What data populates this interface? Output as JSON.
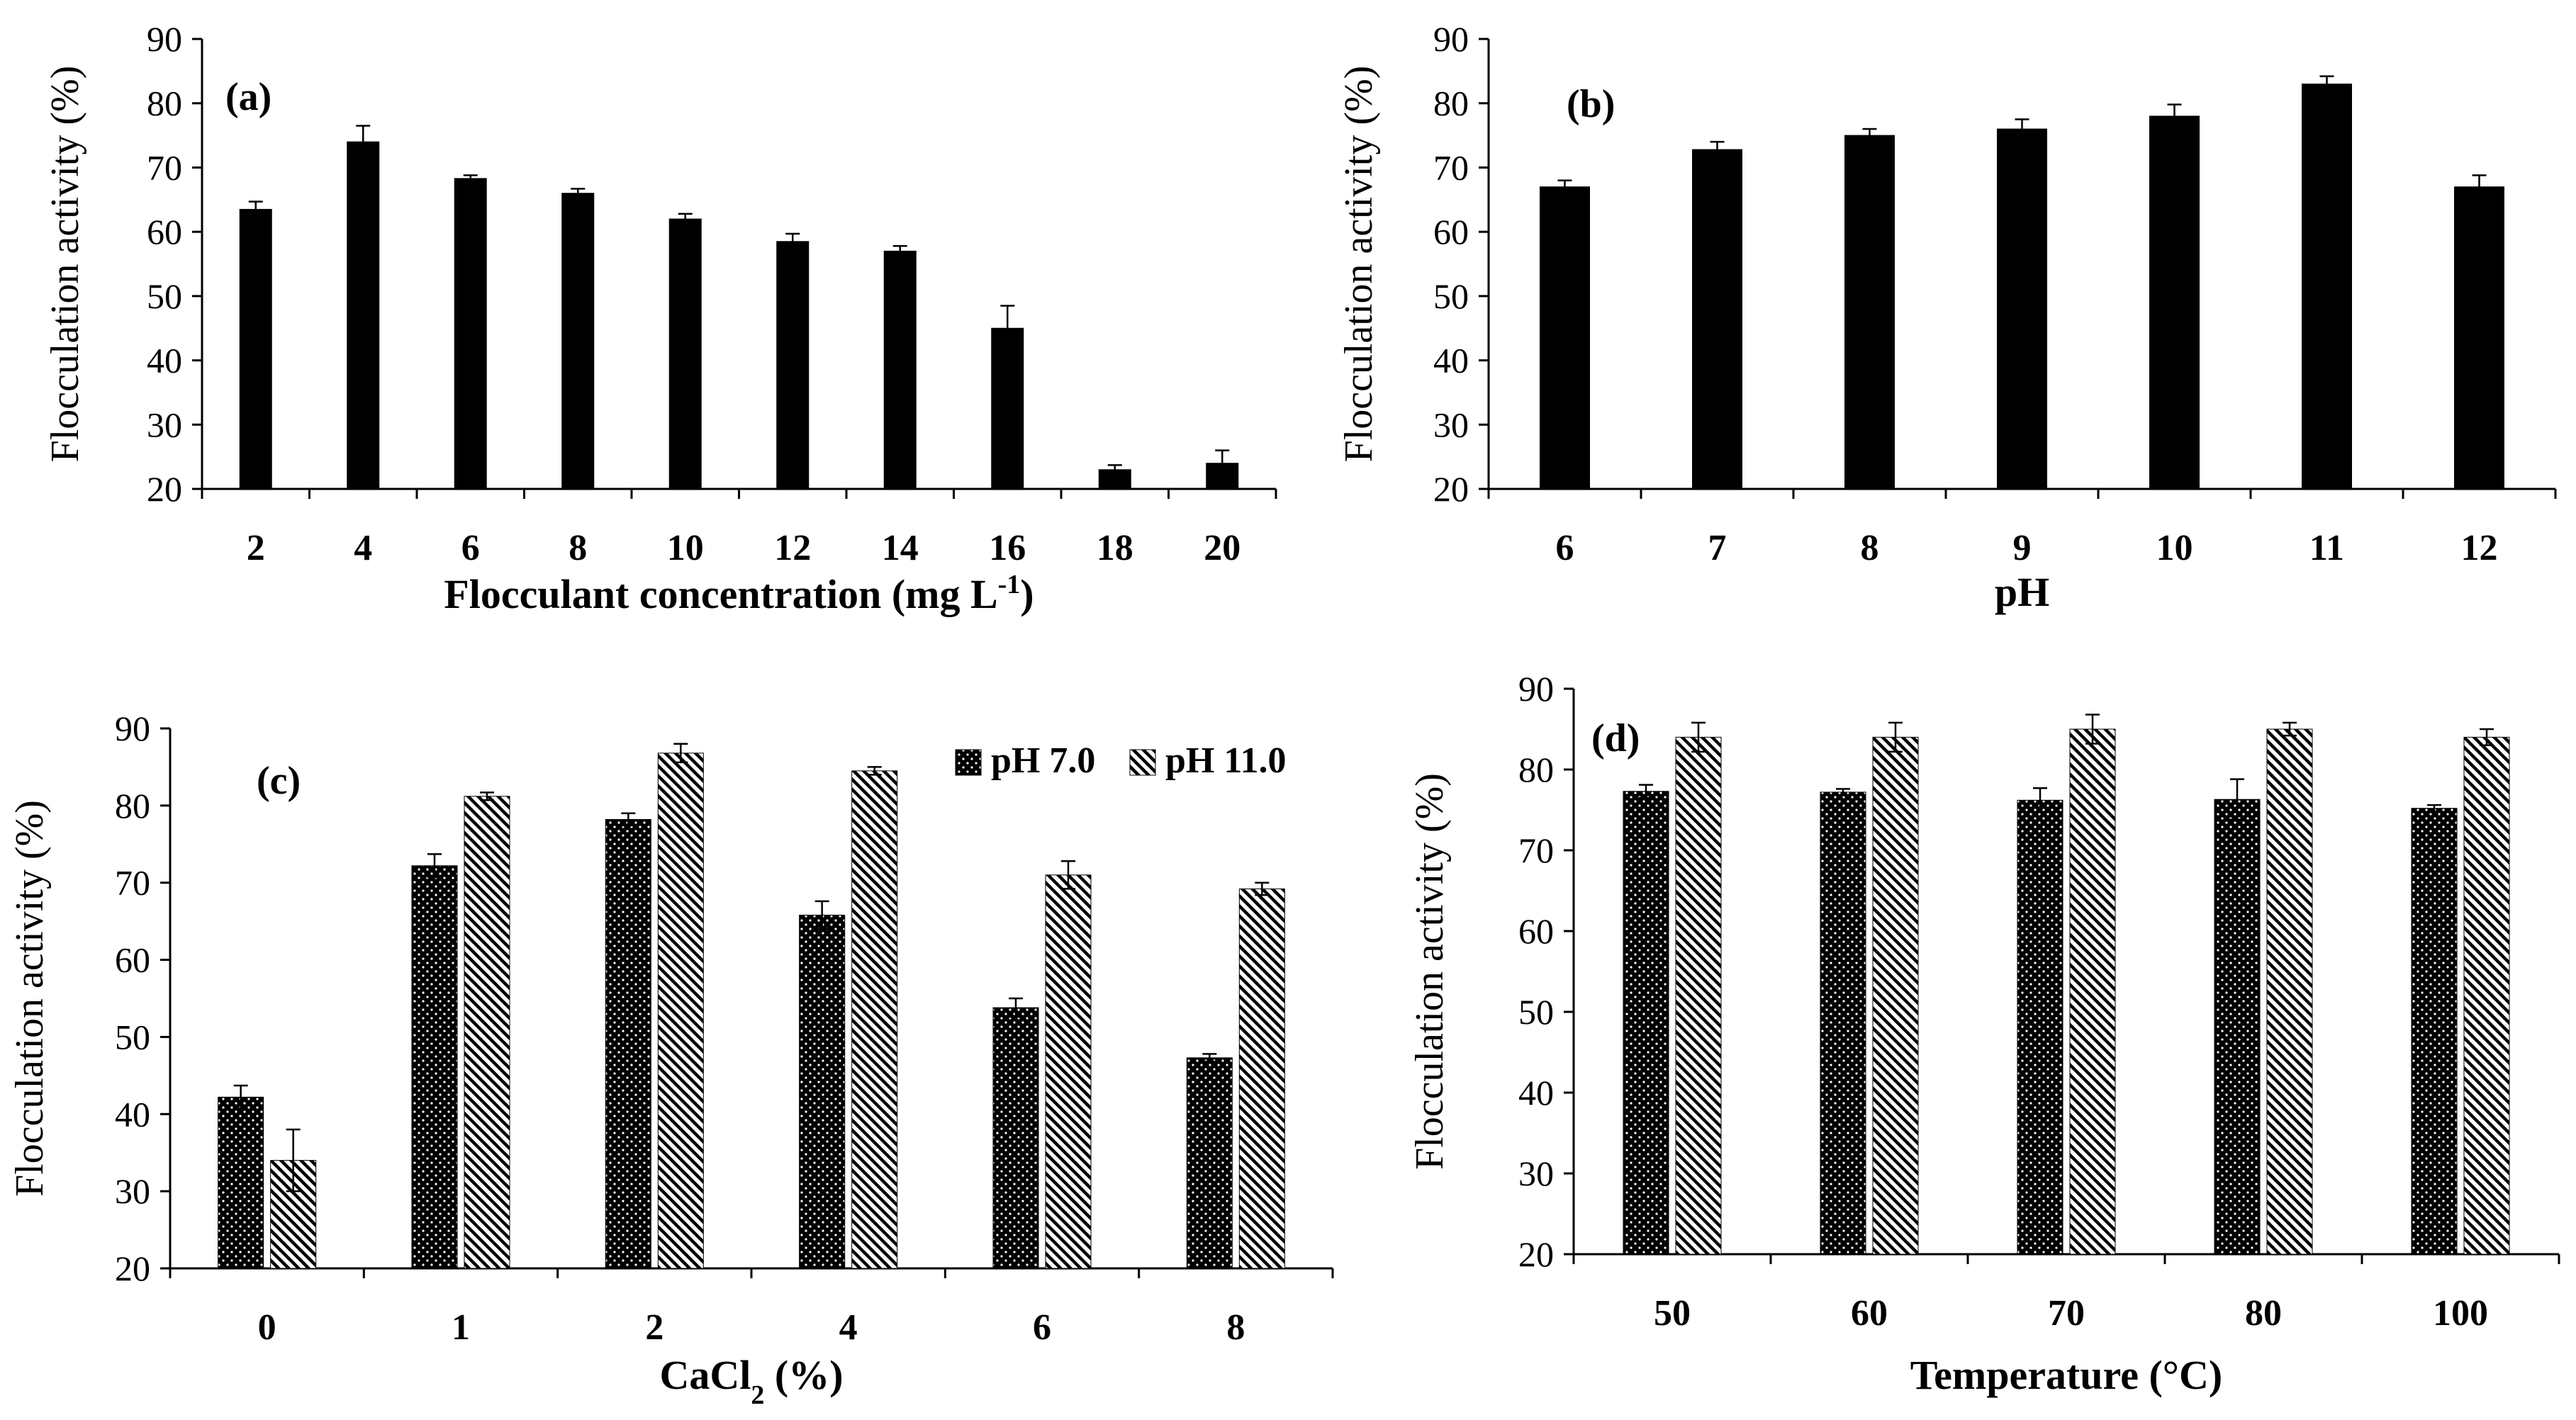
{
  "chart_data": [
    {
      "panel": "(a)",
      "type": "bar",
      "categories": [
        "2",
        "4",
        "6",
        "8",
        "10",
        "12",
        "14",
        "16",
        "18",
        "20"
      ],
      "series": [
        {
          "values": [
            63.5,
            74,
            68.3,
            66,
            62,
            58.5,
            57,
            45,
            23,
            24
          ],
          "errors": [
            1.2,
            2.5,
            0.5,
            0.7,
            0.8,
            1.2,
            0.8,
            3.5,
            0.7,
            2.0
          ]
        }
      ],
      "xlabel_main": "Flocculant concentration (mg L",
      "xlabel_sup": "-1",
      "xlabel_tail": ")",
      "ylabel": "Flocculation activity (%)",
      "ylim": [
        20,
        90
      ],
      "yticks": [
        20,
        30,
        40,
        50,
        60,
        70,
        80,
        90
      ],
      "grid": false
    },
    {
      "panel": "(b)",
      "type": "bar",
      "categories": [
        "6",
        "7",
        "8",
        "9",
        "10",
        "11",
        "12"
      ],
      "series": [
        {
          "values": [
            67,
            72.8,
            75,
            76,
            78,
            83,
            67
          ],
          "errors": [
            1.0,
            1.2,
            1.0,
            1.5,
            1.8,
            1.2,
            1.8
          ]
        }
      ],
      "xlabel": "pH",
      "ylabel": "Flocculation activity (%)",
      "ylim": [
        20,
        90
      ],
      "yticks": [
        20,
        30,
        40,
        50,
        60,
        70,
        80,
        90
      ],
      "grid": false
    },
    {
      "panel": "(c)",
      "type": "bar",
      "categories": [
        "0",
        "1",
        "2",
        "4",
        "6",
        "8"
      ],
      "series": [
        {
          "name": "pH 7.0",
          "pattern": "dots",
          "values": [
            42.2,
            72.2,
            78.2,
            65.8,
            53.8,
            47.3
          ],
          "errors": [
            1.5,
            1.5,
            0.8,
            1.8,
            1.2,
            0.5
          ]
        },
        {
          "name": "pH 11.0",
          "pattern": "hatch",
          "values": [
            34,
            81.2,
            86.8,
            84.5,
            71,
            69.2
          ],
          "errors": [
            4.0,
            0.5,
            1.2,
            0.5,
            1.8,
            0.8
          ]
        }
      ],
      "xlabel_main": "CaCl",
      "xlabel_sub": "2",
      "xlabel_tail": " (%)",
      "ylabel": "Flocculation activity (%)",
      "ylim": [
        20,
        90
      ],
      "yticks": [
        20,
        30,
        40,
        50,
        60,
        70,
        80,
        90
      ],
      "legend": "top-right",
      "grid": false
    },
    {
      "panel": "(d)",
      "type": "bar",
      "categories": [
        "50",
        "60",
        "70",
        "80",
        "100"
      ],
      "series": [
        {
          "name": "pH 7.0",
          "pattern": "dots",
          "values": [
            77.3,
            77.2,
            76.2,
            76.3,
            75.2
          ],
          "errors": [
            0.8,
            0.4,
            1.5,
            2.5,
            0.4
          ]
        },
        {
          "name": "pH 11.0",
          "pattern": "hatch",
          "values": [
            84,
            84,
            85,
            85,
            84
          ],
          "errors": [
            1.8,
            1.8,
            1.8,
            0.8,
            1.0
          ]
        }
      ],
      "xlabel": "Temperature (°C)",
      "ylabel": "Flocculation activity (%)",
      "ylim": [
        20,
        90
      ],
      "yticks": [
        20,
        30,
        40,
        50,
        60,
        70,
        80,
        90
      ],
      "grid": false
    }
  ]
}
